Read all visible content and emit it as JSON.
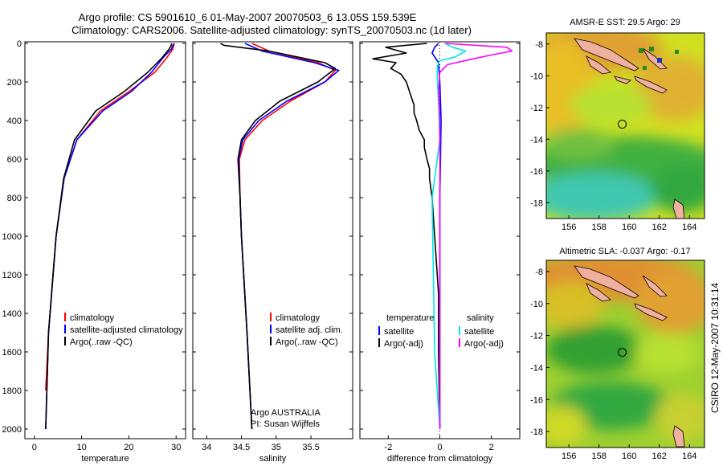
{
  "header": {
    "line1": "Argo profile: CS 5901610_6 01-May-2007 20070503_6 13.05S 159.539E",
    "line2": "Climatology: CARS2006. Satellite-adjusted climatology: synTS_20070503.nc (1d later)"
  },
  "side_stamp": "CSIRO 12-May-2007 10:31:14",
  "info": {
    "org": "Argo AUSTRALIA",
    "pi": "PI: Susan Wijffels"
  },
  "colors": {
    "climatology": "#ff0000",
    "satellite": "#0000ff",
    "argo": "#000000",
    "satellite_salinity": "#00e5e5",
    "argo_salinity": "#ff00ff",
    "map_warm": "#e8a030",
    "map_mid": "#c8e020",
    "map_cool": "#20a040",
    "map_coldest": "#40d0c0",
    "land": "#f0b0a0"
  },
  "chart_data": [
    {
      "type": "line",
      "xlabel": "temperature",
      "ylabel": "",
      "xlim": [
        -2,
        32
      ],
      "ylim": [
        2000,
        0
      ],
      "xticks": [
        0,
        10,
        20,
        30
      ],
      "yticks": [
        0,
        200,
        400,
        600,
        800,
        1000,
        1200,
        1400,
        1600,
        1800,
        2000
      ],
      "legend": [
        "climatology",
        "satellite-adjusted climatology",
        "Argo(..raw -QC)"
      ],
      "legend_position": "bottom-right",
      "series": [
        {
          "name": "climatology",
          "color_key": "climatology",
          "depth": [
            0,
            30,
            75,
            150,
            250,
            350,
            500,
            700,
            1000,
            1500,
            1800
          ],
          "values": [
            29.6,
            29.3,
            28.0,
            25.5,
            20.0,
            14.0,
            9.0,
            6.3,
            4.6,
            3.0,
            2.4
          ]
        },
        {
          "name": "satellite-adjusted climatology",
          "color_key": "satellite",
          "depth": [
            0,
            30,
            75,
            150,
            250,
            350,
            500,
            700,
            1000,
            1500,
            2000
          ],
          "values": [
            29.5,
            29.0,
            27.2,
            24.8,
            20.5,
            14.5,
            9.0,
            6.3,
            4.6,
            3.0,
            2.4
          ]
        },
        {
          "name": "Argo(..raw -QC)",
          "color_key": "argo",
          "depth": [
            0,
            10,
            30,
            75,
            150,
            250,
            350,
            500,
            700,
            1000,
            1500,
            2000
          ],
          "values": [
            29.0,
            29.0,
            28.5,
            27.0,
            24.0,
            19.0,
            13.0,
            8.5,
            6.2,
            4.6,
            3.0,
            2.4
          ]
        }
      ]
    },
    {
      "type": "line",
      "xlabel": "salinity",
      "ylabel": "",
      "xlim": [
        33.8,
        36.1
      ],
      "ylim": [
        2000,
        0
      ],
      "xticks": [
        34,
        34.5,
        35,
        35.5
      ],
      "yticks": [
        0,
        200,
        400,
        600,
        800,
        1000,
        1200,
        1400,
        1600,
        1800,
        2000
      ],
      "legend": [
        "climatology",
        "satellite adj. clim.",
        "Argo(..raw -QC)"
      ],
      "legend_position": "bottom-right",
      "series": [
        {
          "name": "climatology",
          "color_key": "climatology",
          "depth": [
            0,
            40,
            100,
            140,
            200,
            300,
            400,
            500,
            600,
            800,
            1000,
            1500,
            2000
          ],
          "values": [
            34.65,
            34.9,
            35.6,
            35.85,
            35.7,
            35.2,
            34.8,
            34.55,
            34.47,
            34.48,
            34.5,
            34.58,
            34.65
          ]
        },
        {
          "name": "satellite adj. clim.",
          "color_key": "satellite",
          "depth": [
            0,
            40,
            100,
            140,
            200,
            300,
            400,
            500,
            600,
            800,
            1000,
            1500,
            2000
          ],
          "values": [
            34.55,
            34.8,
            35.55,
            35.9,
            35.7,
            35.15,
            34.75,
            34.52,
            34.46,
            34.48,
            34.5,
            34.58,
            34.65
          ]
        },
        {
          "name": "Argo(..raw -QC)",
          "color_key": "argo",
          "depth": [
            0,
            10,
            40,
            100,
            130,
            200,
            300,
            400,
            500,
            600,
            800,
            1000,
            1500,
            2000
          ],
          "values": [
            34.2,
            34.25,
            34.9,
            35.7,
            35.85,
            35.6,
            35.05,
            34.7,
            34.5,
            34.45,
            34.48,
            34.5,
            34.58,
            34.65
          ]
        }
      ]
    },
    {
      "type": "line",
      "xlabel": "difference from climatology",
      "ylabel": "",
      "xlim": [
        -3.1,
        3.1
      ],
      "ylim": [
        2000,
        0
      ],
      "xticks": [
        -2,
        0,
        2
      ],
      "yticks": [
        0,
        200,
        400,
        600,
        800,
        1000,
        1200,
        1400,
        1600,
        1800,
        2000
      ],
      "legend_groups": [
        {
          "title": "temperature",
          "entries": [
            "satellite",
            "Argo(-adj)"
          ]
        },
        {
          "title": "salinity",
          "entries": [
            "satellite",
            "Argo(-adj)"
          ]
        }
      ],
      "legend_position": "bottom",
      "series": [
        {
          "name": "satellite",
          "group": "temperature",
          "color_key": "satellite",
          "depth": [
            0,
            20,
            50,
            100,
            200,
            400,
            800,
            1200,
            2000
          ],
          "values": [
            -0.05,
            -0.2,
            -0.3,
            -0.05,
            0.0,
            0.05,
            0.0,
            0.0,
            0.0
          ]
        },
        {
          "name": "Argo(-adj)",
          "group": "temperature",
          "color_key": "argo",
          "depth": [
            0,
            20,
            50,
            80,
            100,
            130,
            160,
            200,
            240,
            280,
            320,
            360,
            400,
            450,
            500,
            540,
            600,
            650,
            700,
            750,
            800,
            900,
            1000,
            1100,
            1200,
            1300,
            1600,
            2000
          ],
          "values": [
            -0.5,
            -2.1,
            -1.3,
            -2.6,
            -1.7,
            -1.9,
            -1.5,
            -1.3,
            -1.2,
            -1.1,
            -1.0,
            -1.0,
            -0.9,
            -0.8,
            -0.6,
            -0.6,
            -0.5,
            -0.4,
            -0.4,
            -0.35,
            -0.3,
            -0.25,
            -0.2,
            -0.15,
            -0.1,
            -0.05,
            -0.05,
            0.0
          ]
        },
        {
          "name": "satellite",
          "group": "salinity",
          "color_key": "satellite_salinity",
          "depth": [
            0,
            20,
            40,
            70,
            90,
            120,
            180,
            300,
            500,
            800,
            1200,
            1600,
            2000
          ],
          "values": [
            0.2,
            0.5,
            1.0,
            0.6,
            0.0,
            -0.1,
            -0.1,
            -0.05,
            0.0,
            -0.3,
            -0.25,
            -0.2,
            0.0
          ]
        },
        {
          "name": "Argo(-adj)",
          "group": "salinity",
          "color_key": "argo_salinity",
          "depth": [
            0,
            20,
            40,
            60,
            80,
            110,
            150,
            250,
            400,
            800,
            1200,
            1600,
            2000
          ],
          "values": [
            0.2,
            2.6,
            2.8,
            2.0,
            1.3,
            0.3,
            0.0,
            -0.05,
            0.0,
            0.0,
            0.0,
            0.0,
            0.0
          ]
        }
      ]
    },
    {
      "type": "heatmap",
      "title": "AMSR-E SST: 29.5 Argo: 29",
      "xlim": [
        154.5,
        165
      ],
      "ylim": [
        -19,
        -7.3
      ],
      "xticks": [
        156,
        158,
        160,
        162,
        164
      ],
      "yticks": [
        -8,
        -10,
        -12,
        -14,
        -16,
        -18
      ],
      "argo_position": {
        "lon": 159.539,
        "lat": -13.05
      }
    },
    {
      "type": "heatmap",
      "title": "Altimetric SLA: -0.037 Argo: -0.17",
      "xlim": [
        154.5,
        165
      ],
      "ylim": [
        -19,
        -7.3
      ],
      "xticks": [
        156,
        158,
        160,
        162,
        164
      ],
      "yticks": [
        -8,
        -10,
        -12,
        -14,
        -16,
        -18
      ],
      "argo_position": {
        "lon": 159.539,
        "lat": -13.05
      }
    }
  ]
}
